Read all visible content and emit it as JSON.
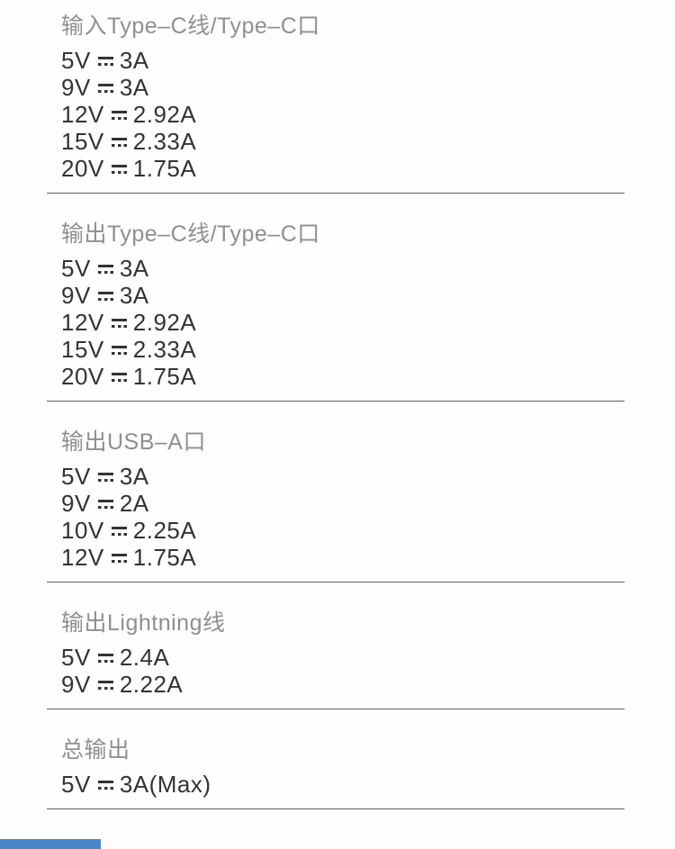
{
  "colors": {
    "background": "#fefefe",
    "title_text": "#8f8f8f",
    "value_text": "#333333",
    "divider": "#5f5f5f",
    "accent_bar": "#4886c5"
  },
  "icons": {
    "dc_symbol": "dc-current-symbol (solid line over three dashes)"
  },
  "sections": [
    {
      "title": "输入Type–C线/Type–C口",
      "specs": [
        {
          "voltage": "5V",
          "current": "3A"
        },
        {
          "voltage": "9V",
          "current": "3A"
        },
        {
          "voltage": "12V",
          "current": "2.92A"
        },
        {
          "voltage": "15V",
          "current": "2.33A"
        },
        {
          "voltage": "20V",
          "current": "1.75A"
        }
      ]
    },
    {
      "title": "输出Type–C线/Type–C口",
      "specs": [
        {
          "voltage": "5V",
          "current": "3A"
        },
        {
          "voltage": "9V",
          "current": "3A"
        },
        {
          "voltage": "12V",
          "current": "2.92A"
        },
        {
          "voltage": "15V",
          "current": "2.33A"
        },
        {
          "voltage": "20V",
          "current": "1.75A"
        }
      ]
    },
    {
      "title": "输出USB–A口",
      "specs": [
        {
          "voltage": "5V",
          "current": "3A"
        },
        {
          "voltage": "9V",
          "current": "2A"
        },
        {
          "voltage": "10V",
          "current": "2.25A"
        },
        {
          "voltage": "12V",
          "current": "1.75A"
        }
      ]
    },
    {
      "title": "输出Lightning线",
      "specs": [
        {
          "voltage": "5V",
          "current": "2.4A"
        },
        {
          "voltage": "9V",
          "current": "2.22A"
        }
      ]
    },
    {
      "title": "总输出",
      "specs": [
        {
          "voltage": "5V",
          "current": "3A(Max)"
        }
      ]
    }
  ]
}
